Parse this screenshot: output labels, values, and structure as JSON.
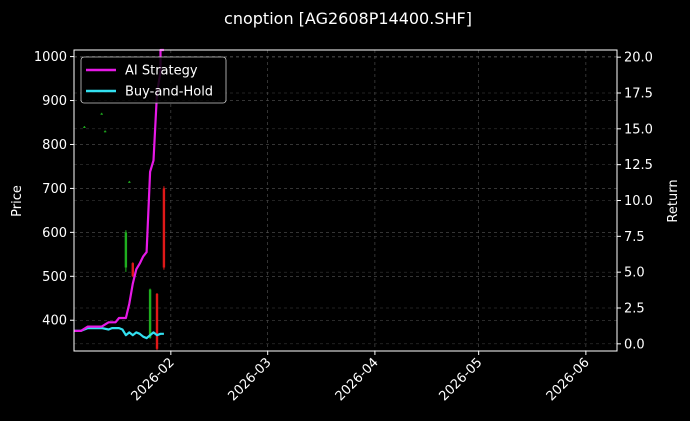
{
  "chart_data": {
    "type": "line",
    "title": "cnoption [AG2608P14400.SHF]",
    "ylabel_left": "Price",
    "ylabel_right": "Return",
    "grid": true,
    "legend_placement": "top-left",
    "x_range": [
      "2026-01-04",
      "2026-06-10"
    ],
    "y_left_range": [
      330,
      1015
    ],
    "y_right_range": [
      -0.5,
      20.5
    ],
    "x_ticks": [
      "2026-02",
      "2026-03",
      "2026-04",
      "2026-05",
      "2026-06"
    ],
    "y_left_ticks": [
      400,
      500,
      600,
      700,
      800,
      900,
      1000
    ],
    "y_right_ticks": [
      "0.0",
      "2.5",
      "5.0",
      "7.5",
      "10.0",
      "12.5",
      "15.0",
      "17.5",
      "20.0"
    ],
    "colors": {
      "ai": "#e619e6",
      "bh": "#33e0f0",
      "up": "#1fae1f",
      "down": "#e01818",
      "grid": "#555555",
      "axis": "#ffffff"
    },
    "series": [
      {
        "name": "AI Strategy",
        "axis": "right",
        "x": [
          "2026-01-04",
          "2026-01-06",
          "2026-01-08",
          "2026-01-10",
          "2026-01-12",
          "2026-01-14",
          "2026-01-16",
          "2026-01-17",
          "2026-01-19",
          "2026-01-20",
          "2026-01-21",
          "2026-01-22",
          "2026-01-23",
          "2026-01-24",
          "2026-01-25",
          "2026-01-26",
          "2026-01-27",
          "2026-01-28",
          "2026-01-29",
          "2026-01-29",
          "2026-01-30"
        ],
        "values": [
          0.9,
          0.9,
          1.2,
          1.2,
          1.2,
          1.5,
          1.5,
          1.8,
          1.8,
          2.8,
          4.2,
          5.2,
          5.6,
          6.1,
          6.4,
          12.0,
          12.8,
          17.5,
          19.0,
          20.5,
          20.5
        ]
      },
      {
        "name": "Buy-and-Hold",
        "axis": "right",
        "x": [
          "2026-01-04",
          "2026-01-06",
          "2026-01-08",
          "2026-01-10",
          "2026-01-12",
          "2026-01-14",
          "2026-01-15",
          "2026-01-17",
          "2026-01-18",
          "2026-01-19",
          "2026-01-20",
          "2026-01-21",
          "2026-01-22",
          "2026-01-23",
          "2026-01-24",
          "2026-01-25",
          "2026-01-26",
          "2026-01-27",
          "2026-01-28",
          "2026-01-29",
          "2026-01-30"
        ],
        "values": [
          0.9,
          0.9,
          1.1,
          1.1,
          1.1,
          1.0,
          1.1,
          1.1,
          1.0,
          0.6,
          0.8,
          0.6,
          0.8,
          0.7,
          0.5,
          0.4,
          0.6,
          0.8,
          0.6,
          0.7,
          0.7
        ]
      }
    ],
    "candles": [
      {
        "x": "2026-01-07",
        "o": 840,
        "c": 840,
        "h": 842,
        "l": 838
      },
      {
        "x": "2026-01-12",
        "o": 870,
        "c": 870,
        "h": 872,
        "l": 868
      },
      {
        "x": "2026-01-13",
        "o": 830,
        "c": 830,
        "h": 832,
        "l": 828
      },
      {
        "x": "2026-01-19",
        "o": 520,
        "c": 600,
        "h": 605,
        "l": 510
      },
      {
        "x": "2026-01-20",
        "o": 715,
        "c": 715,
        "h": 717,
        "l": 713
      },
      {
        "x": "2026-01-21",
        "o": 530,
        "c": 500,
        "h": 532,
        "l": 498
      },
      {
        "x": "2026-01-26",
        "o": 360,
        "c": 470,
        "h": 472,
        "l": 358
      },
      {
        "x": "2026-01-28",
        "o": 460,
        "c": 335,
        "h": 462,
        "l": 332
      },
      {
        "x": "2026-01-30",
        "o": 700,
        "c": 520,
        "h": 705,
        "l": 515
      }
    ]
  }
}
